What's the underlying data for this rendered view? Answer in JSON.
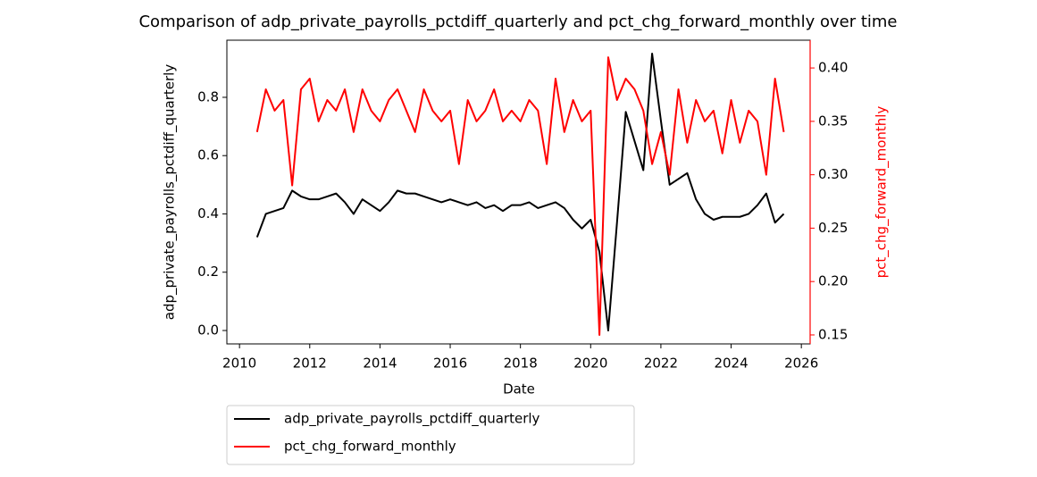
{
  "chart_data": {
    "type": "line",
    "title": "Comparison of adp_private_payrolls_pctdiff_quarterly and pct_chg_forward_monthly over time",
    "x_label": "Date",
    "y_label": "adp_private_payrolls_pctdiff_quarterly",
    "y2_label": "pct_chg_forward_monthly",
    "x": [
      2010.5,
      2010.75,
      2011.0,
      2011.25,
      2011.5,
      2011.75,
      2012.0,
      2012.25,
      2012.5,
      2012.75,
      2013.0,
      2013.25,
      2013.5,
      2013.75,
      2014.0,
      2014.25,
      2014.5,
      2014.75,
      2015.0,
      2015.25,
      2015.5,
      2015.75,
      2016.0,
      2016.25,
      2016.5,
      2016.75,
      2017.0,
      2017.25,
      2017.5,
      2017.75,
      2018.0,
      2018.25,
      2018.5,
      2018.75,
      2019.0,
      2019.25,
      2019.5,
      2019.75,
      2020.0,
      2020.25,
      2020.5,
      2020.75,
      2021.0,
      2021.25,
      2021.5,
      2021.75,
      2022.0,
      2022.25,
      2022.5,
      2022.75,
      2023.0,
      2023.25,
      2023.5,
      2023.75,
      2024.0,
      2024.25,
      2024.5,
      2024.75,
      2025.0,
      2025.25,
      2025.5
    ],
    "series": [
      {
        "name": "adp_private_payrolls_pctdiff_quarterly",
        "color": "#000000",
        "axis": "y",
        "values": [
          0.32,
          0.4,
          0.41,
          0.42,
          0.48,
          0.46,
          0.45,
          0.45,
          0.46,
          0.47,
          0.44,
          0.4,
          0.45,
          0.43,
          0.41,
          0.44,
          0.48,
          0.47,
          0.47,
          0.46,
          0.45,
          0.44,
          0.45,
          0.44,
          0.43,
          0.44,
          0.42,
          0.43,
          0.41,
          0.43,
          0.43,
          0.44,
          0.42,
          0.43,
          0.44,
          0.42,
          0.38,
          0.35,
          0.38,
          0.27,
          0.0,
          0.37,
          0.75,
          0.65,
          0.55,
          0.95,
          0.72,
          0.5,
          0.52,
          0.54,
          0.45,
          0.4,
          0.38,
          0.39,
          0.39,
          0.39,
          0.4,
          0.43,
          0.47,
          0.37,
          0.4
        ]
      },
      {
        "name": "pct_chg_forward_monthly",
        "color": "#ff0000",
        "axis": "y2",
        "values": [
          0.34,
          0.38,
          0.36,
          0.37,
          0.29,
          0.38,
          0.39,
          0.35,
          0.37,
          0.36,
          0.38,
          0.34,
          0.38,
          0.36,
          0.35,
          0.37,
          0.38,
          0.36,
          0.34,
          0.38,
          0.36,
          0.35,
          0.36,
          0.31,
          0.37,
          0.35,
          0.36,
          0.38,
          0.35,
          0.36,
          0.35,
          0.37,
          0.36,
          0.31,
          0.39,
          0.34,
          0.37,
          0.35,
          0.36,
          0.15,
          0.41,
          0.37,
          0.39,
          0.38,
          0.36,
          0.31,
          0.34,
          0.3,
          0.38,
          0.33,
          0.37,
          0.35,
          0.36,
          0.32,
          0.37,
          0.33,
          0.36,
          0.35,
          0.3,
          0.39,
          0.34
        ]
      }
    ],
    "xlim": [
      2009.64,
      2026.25
    ],
    "xticks": [
      2010,
      2012,
      2014,
      2016,
      2018,
      2020,
      2022,
      2024,
      2026
    ],
    "ylim": [
      -0.046,
      0.996
    ],
    "yticks": [
      {
        "value": 0,
        "label": "0.0"
      },
      0.2,
      0.4,
      0.6,
      0.8
    ],
    "y2lim": [
      0.1416,
      0.426
    ],
    "y2ticks": [
      0.15,
      {
        "value": 0.2,
        "label": "0.20"
      },
      0.25,
      {
        "value": 0.3,
        "label": "0.30"
      },
      0.35,
      {
        "value": 0.4,
        "label": "0.40"
      }
    ],
    "y2_color": "#ff0000",
    "legend": "below"
  }
}
